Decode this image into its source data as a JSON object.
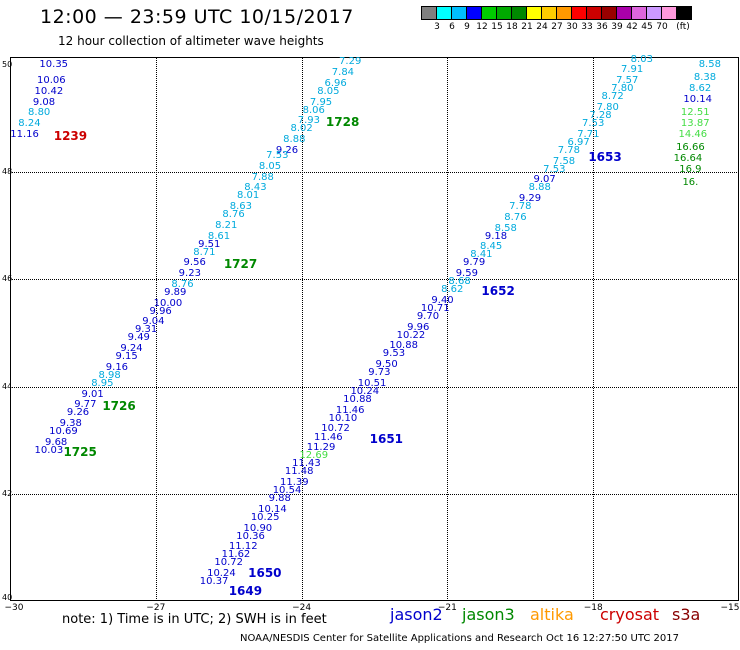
{
  "header": {
    "title": "12:00 — 23:59 UTC 10/15/2017",
    "subtitle": "12 hour collection of altimeter wave heights"
  },
  "legend": {
    "colors": [
      "#808080",
      "#00ffff",
      "#00bfff",
      "#0000ff",
      "#00cc00",
      "#00aa00",
      "#008800",
      "#ffff00",
      "#ffcc00",
      "#ff9900",
      "#ff0000",
      "#cc0000",
      "#990000",
      "#aa00aa",
      "#dd66dd",
      "#cc99ff",
      "#ff99dd",
      "#000000"
    ],
    "labels": [
      "3",
      "6",
      "9",
      "12",
      "15",
      "18",
      "21",
      "24",
      "27",
      "30",
      "33",
      "36",
      "39",
      "42",
      "45",
      "70",
      "(ft)"
    ]
  },
  "axes": {
    "y": [
      {
        "label": "50",
        "lat": 50
      },
      {
        "label": "48",
        "lat": 48
      },
      {
        "label": "46",
        "lat": 46
      },
      {
        "label": "44",
        "lat": 44
      },
      {
        "label": "42",
        "lat": 42
      },
      {
        "label": "40",
        "lat": 40
      }
    ],
    "x": [
      {
        "label": "−30",
        "lon": -30
      },
      {
        "label": "−27",
        "lon": -27
      },
      {
        "label": "−24",
        "lon": -24
      },
      {
        "label": "−21",
        "lon": -21
      },
      {
        "label": "−18",
        "lon": -18
      },
      {
        "label": "−15",
        "lon": -15
      }
    ]
  },
  "colors": {
    "jason2": "#0000cc",
    "jason3": "#008800",
    "altika": "#ff9900",
    "cryosat": "#cc0000",
    "s3a": "#880000",
    "cyan": "#00aadd",
    "light": "#44dd44"
  },
  "tracks": [
    {
      "pts": [
        [
          "10.35",
          -29.1,
          50
        ],
        [
          "10.06",
          -29.15,
          49.7
        ],
        [
          "10.42",
          -29.2,
          49.5
        ],
        [
          "9.08",
          -29.3,
          49.3
        ],
        [
          "8.80",
          -29.4,
          49.1
        ],
        [
          "8.24",
          -29.6,
          48.9
        ],
        [
          "11.16",
          -29.7,
          48.7
        ]
      ],
      "cols": [
        "b",
        "b",
        "b",
        "b",
        "c",
        "c",
        "b"
      ]
    },
    {
      "pts": [
        [
          "7.29",
          -23.0,
          50.05
        ],
        [
          "7.84",
          -23.15,
          49.85
        ],
        [
          "6.96",
          -23.3,
          49.65
        ],
        [
          "8.05",
          -23.45,
          49.5
        ],
        [
          "7.95",
          -23.6,
          49.3
        ],
        [
          "8.06",
          -23.75,
          49.15
        ],
        [
          "7.93",
          -23.85,
          48.95
        ],
        [
          "8.02",
          -24.0,
          48.8
        ],
        [
          "8.88",
          -24.15,
          48.6
        ],
        [
          "9.26",
          -24.3,
          48.4
        ],
        [
          "7.53",
          -24.5,
          48.3
        ],
        [
          "8.05",
          -24.65,
          48.1
        ],
        [
          "7.88",
          -24.8,
          47.9
        ],
        [
          "8.43",
          -24.95,
          47.7
        ],
        [
          "8.01",
          -25.1,
          47.55
        ],
        [
          "8.63",
          -25.25,
          47.35
        ],
        [
          "8.76",
          -25.4,
          47.2
        ],
        [
          "8.21",
          -25.55,
          47.0
        ],
        [
          "8.61",
          -25.7,
          46.8
        ],
        [
          "9.51",
          -25.9,
          46.65
        ],
        [
          "8.71",
          -26.0,
          46.5
        ],
        [
          "9.56",
          -26.2,
          46.3
        ],
        [
          "9.23",
          -26.3,
          46.1
        ],
        [
          "8.76",
          -26.45,
          45.9
        ],
        [
          "9.89",
          -26.6,
          45.75
        ],
        [
          "10.00",
          -26.75,
          45.55
        ],
        [
          "9.96",
          -26.9,
          45.4
        ],
        [
          "9.04",
          -27.05,
          45.2
        ],
        [
          "9.31",
          -27.2,
          45.05
        ],
        [
          "9.49",
          -27.35,
          44.9
        ],
        [
          "9.24",
          -27.5,
          44.7
        ],
        [
          "9.15",
          -27.6,
          44.55
        ],
        [
          "9.16",
          -27.8,
          44.35
        ],
        [
          "8.98",
          -27.95,
          44.2
        ],
        [
          "8.95",
          -28.1,
          44.05
        ],
        [
          "9.01",
          -28.3,
          43.85
        ],
        [
          "9.77",
          -28.45,
          43.65
        ],
        [
          "9.26",
          -28.6,
          43.5
        ],
        [
          "9.38",
          -28.75,
          43.3
        ],
        [
          "10.69",
          -28.9,
          43.15
        ],
        [
          "9.68",
          -29.05,
          42.95
        ],
        [
          "10.03",
          -29.2,
          42.8
        ]
      ],
      "cols": [
        "c",
        "c",
        "c",
        "c",
        "c",
        "c",
        "c",
        "c",
        "c",
        "b",
        "c",
        "c",
        "c",
        "c",
        "c",
        "c",
        "c",
        "c",
        "c",
        "b",
        "c",
        "b",
        "b",
        "c",
        "b",
        "b",
        "b",
        "b",
        "b",
        "b",
        "b",
        "b",
        "b",
        "c",
        "c",
        "b",
        "b",
        "b",
        "b",
        "b",
        "b",
        "b"
      ]
    },
    {
      "pts": [
        [
          "8.03",
          -17.0,
          50.1
        ],
        [
          "7.91",
          -17.2,
          49.9
        ],
        [
          "7.57",
          -17.3,
          49.7
        ],
        [
          "7.80",
          -17.4,
          49.55
        ],
        [
          "8.72",
          -17.6,
          49.4
        ],
        [
          "7.80",
          -17.7,
          49.2
        ],
        [
          "7.28",
          -17.85,
          49.05
        ],
        [
          "7.53",
          -18.0,
          48.9
        ],
        [
          "7.71",
          -18.1,
          48.7
        ],
        [
          "6.97",
          -18.3,
          48.55
        ],
        [
          "7.78",
          -18.5,
          48.4
        ],
        [
          "7.58",
          -18.6,
          48.2
        ],
        [
          "7.53",
          -18.8,
          48.05
        ],
        [
          "9.07",
          -19.0,
          47.85
        ],
        [
          "8.88",
          -19.1,
          47.7
        ],
        [
          "9.29",
          -19.3,
          47.5
        ],
        [
          "7.78",
          -19.5,
          47.35
        ],
        [
          "8.76",
          -19.6,
          47.15
        ],
        [
          "8.58",
          -19.8,
          46.95
        ],
        [
          "9.18",
          -20.0,
          46.8
        ],
        [
          "8.45",
          -20.1,
          46.6
        ],
        [
          "8.41",
          -20.3,
          46.45
        ],
        [
          "9.79",
          -20.45,
          46.3
        ],
        [
          "9.59",
          -20.6,
          46.1
        ],
        [
          "8.68",
          -20.75,
          45.95
        ],
        [
          "8.62",
          -20.9,
          45.8
        ],
        [
          "9.40",
          -21.1,
          45.6
        ],
        [
          "10.71",
          -21.25,
          45.45
        ],
        [
          "9.70",
          -21.4,
          45.3
        ],
        [
          "9.96",
          -21.6,
          45.1
        ],
        [
          "10.22",
          -21.75,
          44.95
        ],
        [
          "10.88",
          -21.9,
          44.75
        ],
        [
          "9.53",
          -22.1,
          44.6
        ],
        [
          "9.50",
          -22.25,
          44.4
        ],
        [
          "9.73",
          -22.4,
          44.25
        ],
        [
          "10.51",
          -22.55,
          44.05
        ],
        [
          "10.24",
          -22.7,
          43.9
        ],
        [
          "10.88",
          -22.85,
          43.75
        ],
        [
          "11.46",
          -23.0,
          43.55
        ],
        [
          "10.10",
          -23.15,
          43.4
        ],
        [
          "10.72",
          -23.3,
          43.2
        ],
        [
          "11.46",
          -23.45,
          43.05
        ],
        [
          "11.29",
          -23.6,
          42.85
        ],
        [
          "12.69",
          -23.75,
          42.7
        ],
        [
          "11.43",
          -23.9,
          42.55
        ],
        [
          "11.48",
          -24.05,
          42.4
        ],
        [
          "11.39",
          -24.15,
          42.2
        ],
        [
          "10.54",
          -24.3,
          42.05
        ],
        [
          "9.88",
          -24.45,
          41.9
        ],
        [
          "10.14",
          -24.6,
          41.7
        ],
        [
          "10.25",
          -24.75,
          41.55
        ],
        [
          "10.90",
          -24.9,
          41.35
        ],
        [
          "10.36",
          -25.05,
          41.2
        ],
        [
          "11.12",
          -25.2,
          41.0
        ],
        [
          "11.62",
          -25.35,
          40.85
        ],
        [
          "10.72",
          -25.5,
          40.7
        ],
        [
          "10.24",
          -25.65,
          40.5
        ],
        [
          "10.37",
          -25.8,
          40.35
        ]
      ],
      "cols": [
        "c",
        "c",
        "c",
        "c",
        "c",
        "c",
        "c",
        "c",
        "c",
        "c",
        "c",
        "c",
        "c",
        "b",
        "c",
        "b",
        "c",
        "c",
        "c",
        "b",
        "c",
        "c",
        "b",
        "b",
        "c",
        "c",
        "b",
        "b",
        "b",
        "b",
        "b",
        "b",
        "b",
        "b",
        "b",
        "b",
        "b",
        "b",
        "b",
        "b",
        "b",
        "b",
        "b",
        "l",
        "b",
        "b",
        "b",
        "b",
        "b",
        "b",
        "b",
        "b",
        "b",
        "b",
        "b",
        "b",
        "b",
        "b"
      ]
    },
    {
      "pts": [
        [
          "8.58",
          -15.6,
          50
        ],
        [
          "8.38",
          -15.7,
          49.75
        ],
        [
          "8.62",
          -15.8,
          49.55
        ],
        [
          "10.14",
          -15.85,
          49.35
        ],
        [
          "12.51",
          -15.9,
          49.1
        ],
        [
          "13.87",
          -15.9,
          48.9
        ],
        [
          "14.46",
          -15.95,
          48.7
        ],
        [
          "16.66",
          -16.0,
          48.45
        ],
        [
          "16.64",
          -16.05,
          48.25
        ],
        [
          "16.9",
          -16.0,
          48.05
        ],
        [
          "16.",
          -16.0,
          47.8
        ]
      ],
      "cols": [
        "c",
        "c",
        "c",
        "b",
        "l",
        "l",
        "l",
        "g",
        "g",
        "g",
        "g"
      ]
    }
  ],
  "times": [
    {
      "label": "1239",
      "lon": -29.1,
      "lat": 48.7,
      "col": "cryosat"
    },
    {
      "label": "1728",
      "lon": -23.5,
      "lat": 48.95,
      "col": "jason3"
    },
    {
      "label": "1727",
      "lon": -25.6,
      "lat": 46.3,
      "col": "jason3"
    },
    {
      "label": "1726",
      "lon": -28.1,
      "lat": 43.65,
      "col": "jason3"
    },
    {
      "label": "1725",
      "lon": -28.9,
      "lat": 42.8,
      "col": "jason3"
    },
    {
      "label": "1653",
      "lon": -18.1,
      "lat": 48.3,
      "col": "jason2"
    },
    {
      "label": "1652",
      "lon": -20.3,
      "lat": 45.8,
      "col": "jason2"
    },
    {
      "label": "1651",
      "lon": -22.6,
      "lat": 43.05,
      "col": "jason2"
    },
    {
      "label": "1650",
      "lon": -25.1,
      "lat": 40.55,
      "col": "jason2"
    },
    {
      "label": "1649",
      "lon": -25.5,
      "lat": 40.2,
      "col": "jason2"
    }
  ],
  "footer": {
    "note": "note:  1) Time is in UTC;  2) SWH is in feet",
    "sats": [
      "jason2",
      "jason3",
      "altika",
      "cryosat",
      "s3a"
    ],
    "credit": "NOAA/NESDIS Center for Satellite Applications and Research     Oct 16 12:27:50 UTC 2017"
  }
}
